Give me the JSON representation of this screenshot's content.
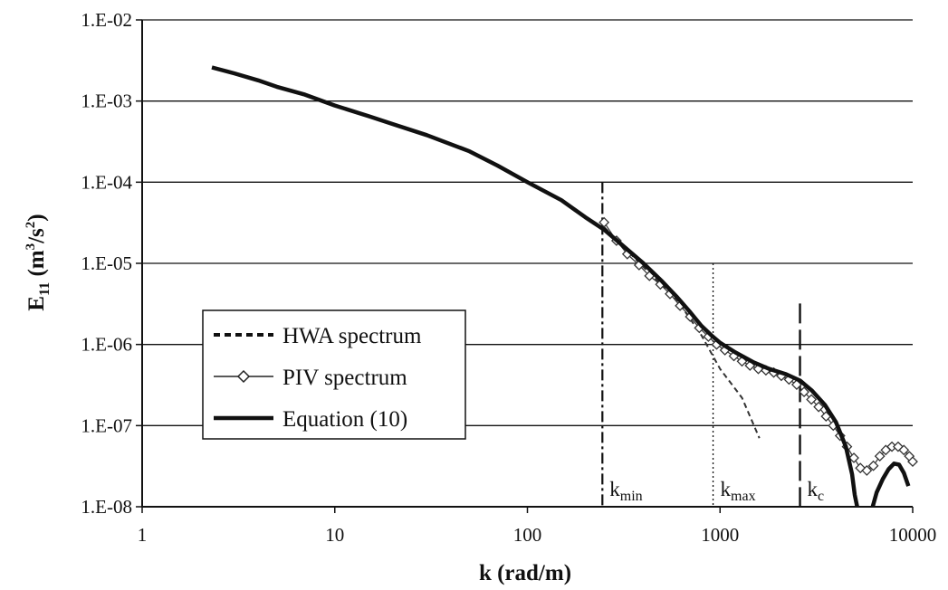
{
  "chart_data": {
    "type": "line",
    "title": "",
    "xlabel": "k (rad/m)",
    "ylabel": {
      "main": "E",
      "sub": "11",
      "units_open": " (m",
      "units_sup": "3",
      "units_mid": "/s",
      "units_sup2": "2",
      "units_close": ")"
    },
    "x_scale": "log",
    "y_scale": "log",
    "xlim": [
      1,
      10000
    ],
    "ylim": [
      1e-08,
      0.01
    ],
    "grid": "horizontal",
    "x_ticks": [
      {
        "value": 1,
        "label": "1"
      },
      {
        "value": 10,
        "label": "10"
      },
      {
        "value": 100,
        "label": "100"
      },
      {
        "value": 1000,
        "label": "1000"
      },
      {
        "value": 10000,
        "label": "10000"
      }
    ],
    "y_ticks": [
      {
        "value": 0.01,
        "label": "1.E-02"
      },
      {
        "value": 0.001,
        "label": "1.E-03"
      },
      {
        "value": 0.0001,
        "label": "1.E-04"
      },
      {
        "value": 1e-05,
        "label": "1.E-05"
      },
      {
        "value": 1e-06,
        "label": "1.E-06"
      },
      {
        "value": 1e-07,
        "label": "1.E-07"
      },
      {
        "value": 1e-08,
        "label": "1.E-08"
      }
    ],
    "legend_position": "left-middle",
    "series": [
      {
        "name": "HWA spectrum",
        "style": "dashed",
        "x": [
          250,
          400,
          600,
          800,
          1000,
          1300,
          1600
        ],
        "y": [
          2.8e-05,
          9e-06,
          3.5e-06,
          1.3e-06,
          5e-07,
          2.2e-07,
          7e-08
        ]
      },
      {
        "name": "PIV spectrum",
        "style": "line-diamond",
        "x": [
          250,
          290,
          330,
          380,
          430,
          490,
          550,
          620,
          700,
          780,
          870,
          960,
          1060,
          1180,
          1300,
          1430,
          1580,
          1730,
          1900,
          2080,
          2280,
          2500,
          2730,
          2980,
          3250,
          3550,
          3870,
          4200,
          4560,
          4950,
          5350,
          5780,
          6250,
          6750,
          7250,
          7800,
          8400,
          9000,
          9600,
          10000
        ],
        "y": [
          3.2e-05,
          1.9e-05,
          1.3e-05,
          9.5e-06,
          7e-06,
          5.5e-06,
          4.2e-06,
          3e-06,
          2.2e-06,
          1.6e-06,
          1.25e-06,
          1e-06,
          8.5e-07,
          7.2e-07,
          6.2e-07,
          5.5e-07,
          5e-07,
          4.8e-07,
          4.5e-07,
          4.1e-07,
          3.7e-07,
          3.2e-07,
          2.6e-07,
          2.1e-07,
          1.7e-07,
          1.3e-07,
          1e-07,
          7.5e-08,
          5.5e-08,
          4e-08,
          3e-08,
          2.8e-08,
          3.2e-08,
          4.2e-08,
          5e-08,
          5.5e-08,
          5.5e-08,
          5e-08,
          4.2e-08,
          3.6e-08
        ]
      },
      {
        "name": "Equation (10)",
        "style": "solid-thick",
        "x": [
          2.3,
          3,
          4,
          5,
          7,
          10,
          15,
          20,
          30,
          50,
          70,
          100,
          150,
          200,
          250,
          300,
          400,
          500,
          600,
          700,
          800,
          900,
          1000,
          1200,
          1500,
          1800,
          2200,
          2600,
          3000,
          3500,
          4000,
          4500,
          4850,
          5000,
          5150
        ],
        "y": [
          0.0026,
          0.0022,
          0.0018,
          0.0015,
          0.0012,
          0.00088,
          0.00065,
          0.00052,
          0.00038,
          0.00024,
          0.00016,
          0.0001,
          6e-05,
          3.7e-05,
          2.6e-05,
          1.8e-05,
          1e-05,
          6e-06,
          3.8e-06,
          2.5e-06,
          1.7e-06,
          1.3e-06,
          1.05e-06,
          8e-07,
          6e-07,
          5e-07,
          4.3e-07,
          3.6e-07,
          2.7e-07,
          1.8e-07,
          1.1e-07,
          5.5e-08,
          2.5e-08,
          1.4e-08,
          1e-08
        ]
      },
      {
        "name": "",
        "style": "solid-thick",
        "x": [
          6200,
          6500,
          7000,
          7500,
          8000,
          8500,
          9000,
          9500
        ],
        "y": [
          1e-08,
          1.5e-08,
          2.2e-08,
          2.9e-08,
          3.4e-08,
          3.3e-08,
          2.6e-08,
          1.8e-08
        ]
      }
    ],
    "vertical_markers": [
      {
        "x": 245,
        "style": "dash-dot",
        "y_top": 0.0001,
        "label": "k",
        "label_sub": "min"
      },
      {
        "x": 920,
        "style": "dotted",
        "y_top": 1e-05,
        "label": "k",
        "label_sub": "max"
      },
      {
        "x": 2600,
        "style": "long-dash",
        "y_top": 3.2e-06,
        "label": "k",
        "label_sub": "c"
      }
    ]
  }
}
